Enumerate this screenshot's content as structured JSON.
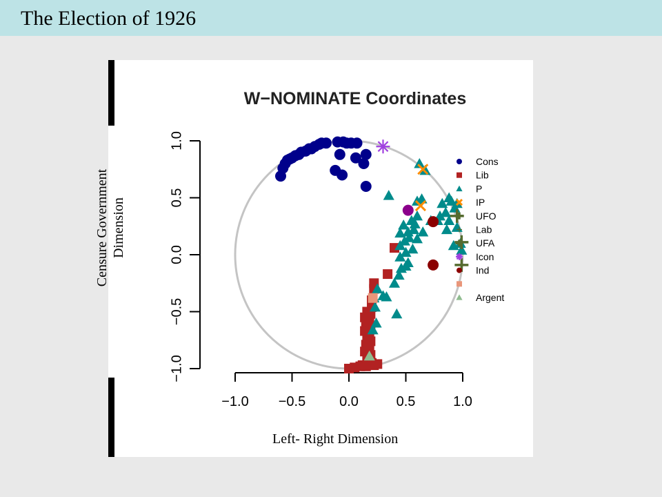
{
  "slide": {
    "title": "The Election of 1926",
    "overlay_ylabel": "Censure Government\nDimension",
    "overlay_xlabel": "Left- Right Dimension"
  },
  "chart_data": {
    "type": "scatter",
    "title": "W−NOMINATE Coordinates",
    "xlim": [
      -1.0,
      1.0
    ],
    "ylim": [
      -1.0,
      1.0
    ],
    "x_ticks": [
      "−1.0",
      "−0.5",
      "0.0",
      "0.5",
      "1.0"
    ],
    "y_ticks": [
      "−1.0",
      "−0.5",
      "0.0",
      "0.5",
      "1.0"
    ],
    "unit_circle": true,
    "legend_position": "right",
    "series": [
      {
        "name": "Cons",
        "color": "#00008b",
        "marker": "circle",
        "points": [
          [
            -0.6,
            0.69
          ],
          [
            -0.58,
            0.76
          ],
          [
            -0.56,
            0.8
          ],
          [
            -0.54,
            0.83
          ],
          [
            -0.52,
            0.84
          ],
          [
            -0.5,
            0.85
          ],
          [
            -0.47,
            0.87
          ],
          [
            -0.44,
            0.88
          ],
          [
            -0.42,
            0.9
          ],
          [
            -0.38,
            0.91
          ],
          [
            -0.35,
            0.93
          ],
          [
            -0.33,
            0.93
          ],
          [
            -0.3,
            0.95
          ],
          [
            -0.26,
            0.97
          ],
          [
            -0.24,
            0.98
          ],
          [
            -0.2,
            0.98
          ],
          [
            -0.1,
            0.99
          ],
          [
            -0.05,
            0.99
          ],
          [
            -0.02,
            0.98
          ],
          [
            0.02,
            0.98
          ],
          [
            0.07,
            0.98
          ],
          [
            -0.08,
            0.88
          ],
          [
            0.06,
            0.85
          ],
          [
            0.15,
            0.88
          ],
          [
            -0.12,
            0.74
          ],
          [
            -0.06,
            0.7
          ],
          [
            0.13,
            0.8
          ],
          [
            0.15,
            0.6
          ]
        ]
      },
      {
        "name": "Lib",
        "color": "#b22222",
        "marker": "square",
        "points": [
          [
            0.4,
            0.06
          ],
          [
            0.34,
            -0.17
          ],
          [
            0.22,
            -0.25
          ],
          [
            0.22,
            -0.3
          ],
          [
            0.2,
            -0.4
          ],
          [
            0.2,
            -0.46
          ],
          [
            0.16,
            -0.5
          ],
          [
            0.19,
            -0.52
          ],
          [
            0.14,
            -0.55
          ],
          [
            0.18,
            -0.58
          ],
          [
            0.15,
            -0.62
          ],
          [
            0.19,
            -0.64
          ],
          [
            0.14,
            -0.67
          ],
          [
            0.18,
            -0.7
          ],
          [
            0.16,
            -0.73
          ],
          [
            0.19,
            -0.76
          ],
          [
            0.15,
            -0.79
          ],
          [
            0.18,
            -0.8
          ],
          [
            0.14,
            -0.85
          ],
          [
            0.19,
            -0.88
          ],
          [
            0.16,
            -0.92
          ],
          [
            0.2,
            -0.95
          ],
          [
            0.12,
            -0.97
          ],
          [
            0.1,
            -0.98
          ],
          [
            0.05,
            -0.99
          ],
          [
            0.0,
            -1.0
          ],
          [
            0.15,
            -0.98
          ],
          [
            0.22,
            -0.97
          ],
          [
            0.25,
            -0.96
          ]
        ]
      },
      {
        "name": "P",
        "color": "#008b8b",
        "marker": "triangle",
        "points": [
          [
            0.35,
            0.52
          ],
          [
            0.62,
            0.8
          ],
          [
            0.67,
            0.74
          ],
          [
            0.95,
            0.45
          ],
          [
            0.6,
            0.47
          ],
          [
            0.64,
            0.49
          ],
          [
            0.82,
            0.45
          ],
          [
            0.88,
            0.5
          ],
          [
            0.9,
            0.47
          ],
          [
            0.93,
            0.41
          ],
          [
            0.85,
            0.37
          ],
          [
            0.8,
            0.34
          ],
          [
            0.78,
            0.3
          ],
          [
            0.72,
            0.3
          ],
          [
            0.6,
            0.34
          ],
          [
            0.55,
            0.3
          ],
          [
            0.48,
            0.26
          ],
          [
            0.45,
            0.19
          ],
          [
            0.52,
            0.2
          ],
          [
            0.57,
            0.22
          ],
          [
            0.53,
            0.15
          ],
          [
            0.49,
            0.12
          ],
          [
            0.45,
            0.08
          ],
          [
            0.6,
            0.14
          ],
          [
            0.56,
            0.05
          ],
          [
            0.5,
            0.02
          ],
          [
            0.45,
            -0.02
          ],
          [
            0.52,
            -0.07
          ],
          [
            0.46,
            -0.12
          ],
          [
            0.44,
            -0.18
          ],
          [
            0.95,
            0.24
          ],
          [
            0.98,
            0.1
          ],
          [
            0.99,
            0.04
          ],
          [
            0.92,
            0.08
          ],
          [
            0.4,
            -0.25
          ],
          [
            0.33,
            -0.37
          ],
          [
            0.3,
            -0.36
          ],
          [
            0.25,
            -0.3
          ],
          [
            0.22,
            -0.38
          ],
          [
            0.23,
            -0.46
          ],
          [
            0.24,
            -0.6
          ],
          [
            0.21,
            -0.66
          ],
          [
            0.42,
            -0.52
          ],
          [
            0.88,
            0.3
          ],
          [
            0.86,
            0.22
          ],
          [
            0.65,
            0.2
          ],
          [
            0.5,
            -0.1
          ],
          [
            0.58,
            0.27
          ]
        ]
      },
      {
        "name": "IP",
        "color": "#ff8c00",
        "marker": "x",
        "points": [
          [
            0.65,
            0.75
          ],
          [
            0.63,
            0.43
          ]
        ]
      },
      {
        "name": "UFO",
        "color": "#556b2f",
        "marker": "plus",
        "points": [
          [
            0.95,
            0.34
          ],
          [
            0.99,
            0.11
          ],
          [
            0.99,
            -0.09
          ]
        ]
      },
      {
        "name": "Lab",
        "color": "#556b2f",
        "marker": "thin-plus",
        "points": []
      },
      {
        "name": "UFA",
        "color": "#556b2f",
        "marker": "plus",
        "points": []
      },
      {
        "name": "Icon",
        "color": "#a040e0",
        "marker": "asterisk",
        "points": [
          [
            0.3,
            0.95
          ]
        ]
      },
      {
        "name": "Ind",
        "color": "#8b0000",
        "marker": "circle",
        "points": [
          [
            0.74,
            0.29
          ],
          [
            0.74,
            -0.09
          ]
        ]
      },
      {
        "name": "",
        "color": "#8b008b",
        "marker": "circle",
        "points": [
          [
            0.52,
            0.39
          ]
        ]
      },
      {
        "name": "",
        "color": "#e9967a",
        "marker": "square",
        "points": [
          [
            0.21,
            -0.38
          ]
        ]
      },
      {
        "name": "Argent",
        "color": "#8fbc8f",
        "marker": "triangle",
        "points": [
          [
            0.18,
            -0.89
          ]
        ]
      }
    ],
    "legend": [
      {
        "label": "Cons",
        "color": "#00008b",
        "marker": "circle"
      },
      {
        "label": "Lib",
        "color": "#b22222",
        "marker": "square"
      },
      {
        "label": "P",
        "color": "#008b8b",
        "marker": "triangle"
      },
      {
        "label": "IP",
        "color": "#ff8c00",
        "marker": "x"
      },
      {
        "label": "UFO",
        "color": "#556b2f",
        "marker": "plus"
      },
      {
        "label": "Lab",
        "color": "#556b2f",
        "marker": "thin-plus"
      },
      {
        "label": "UFA",
        "color": "#556b2f",
        "marker": "plus"
      },
      {
        "label": "Icon",
        "color": "#a040e0",
        "marker": "asterisk"
      },
      {
        "label": "Ind",
        "color": "#8b0000",
        "marker": "circle"
      },
      {
        "label": "",
        "color": "#e9967a",
        "marker": "square"
      },
      {
        "label": "Argent",
        "color": "#8fbc8f",
        "marker": "triangle"
      }
    ]
  }
}
